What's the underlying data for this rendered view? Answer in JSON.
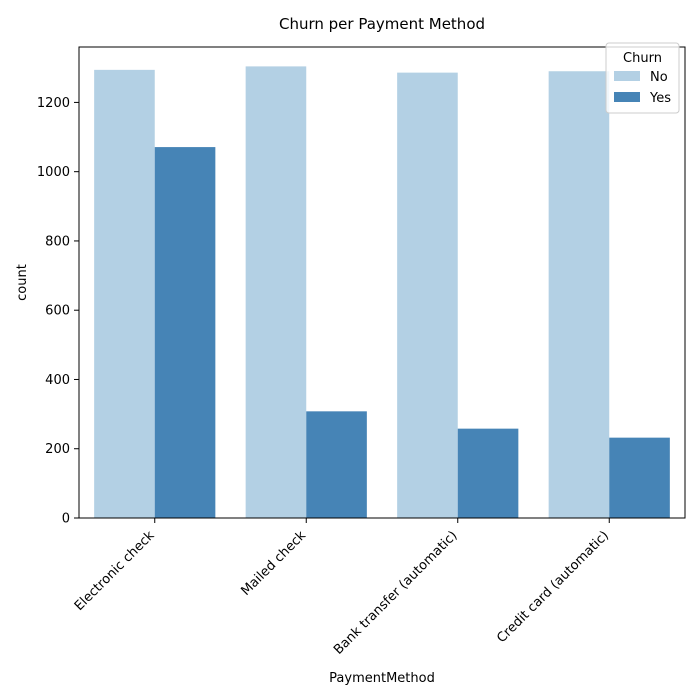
{
  "chart_data": {
    "type": "bar",
    "title": "Churn per Payment Method",
    "xlabel": "PaymentMethod",
    "ylabel": "count",
    "categories": [
      "Electronic check",
      "Mailed check",
      "Bank transfer (automatic)",
      "Credit card (automatic)"
    ],
    "series": [
      {
        "name": "No",
        "values": [
          1294,
          1304,
          1286,
          1290
        ],
        "color": "#b3d0e4"
      },
      {
        "name": "Yes",
        "values": [
          1071,
          308,
          258,
          232
        ],
        "color": "#4684b6"
      }
    ],
    "ylim": [
      0,
      1360
    ],
    "yticks": [
      0,
      200,
      400,
      600,
      800,
      1000,
      1200
    ],
    "grid": false,
    "legend": {
      "title": "Churn",
      "placement": "top-right"
    }
  }
}
